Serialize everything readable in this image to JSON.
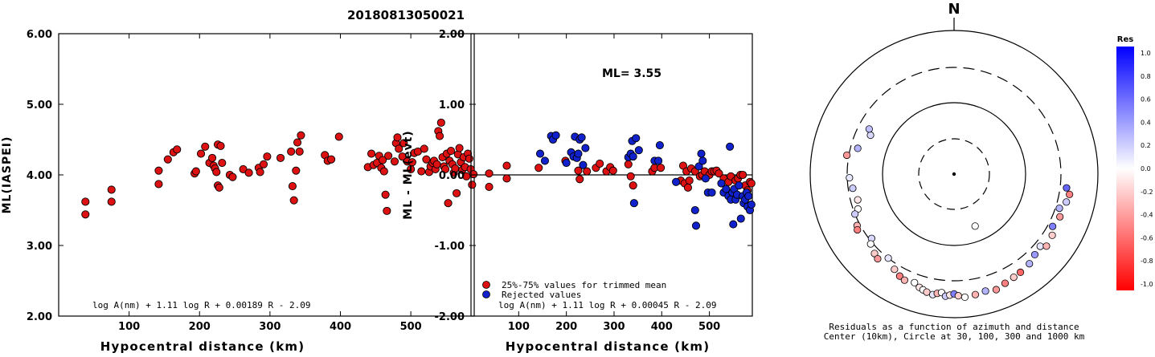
{
  "title": "20180813050021",
  "chart_data": [
    {
      "type": "scatter",
      "xlabel": "Hypocentral distance (km)",
      "ylabel": "ML(IASPEI)",
      "xlim": [
        0,
        590
      ],
      "ylim": [
        2.0,
        6.0
      ],
      "xticks": [
        "100",
        "200",
        "300",
        "400",
        "500"
      ],
      "xtick_values": [
        100,
        200,
        300,
        400,
        500
      ],
      "yticks": [
        "2.00",
        "3.00",
        "4.00",
        "5.00",
        "6.00"
      ],
      "ytick_values": [
        2.0,
        3.0,
        4.0,
        5.0,
        6.0
      ],
      "formula": "log A(nm) + 1.11 log R + 0.00189 R - 2.09",
      "series": [
        {
          "color": "#dd1111",
          "points": [
            [
              38,
              3.62
            ],
            [
              38,
              3.44
            ],
            [
              75,
              3.79
            ],
            [
              75,
              3.62
            ],
            [
              142,
              4.06
            ],
            [
              142,
              3.87
            ],
            [
              155,
              4.22
            ],
            [
              163,
              4.32
            ],
            [
              168,
              4.36
            ],
            [
              193,
              4.02
            ],
            [
              195,
              4.05
            ],
            [
              202,
              4.3
            ],
            [
              208,
              4.4
            ],
            [
              214,
              4.17
            ],
            [
              218,
              4.24
            ],
            [
              220,
              4.13
            ],
            [
              222,
              4.09
            ],
            [
              224,
              4.04
            ],
            [
              226,
              4.43
            ],
            [
              226,
              3.85
            ],
            [
              228,
              3.82
            ],
            [
              230,
              4.41
            ],
            [
              232,
              4.17
            ],
            [
              243,
              4.0
            ],
            [
              247,
              3.97
            ],
            [
              262,
              4.08
            ],
            [
              270,
              4.03
            ],
            [
              284,
              4.1
            ],
            [
              286,
              4.04
            ],
            [
              291,
              4.15
            ],
            [
              296,
              4.26
            ],
            [
              315,
              4.24
            ],
            [
              330,
              4.33
            ],
            [
              332,
              3.84
            ],
            [
              334,
              3.64
            ],
            [
              337,
              4.06
            ],
            [
              339,
              4.46
            ],
            [
              342,
              4.33
            ],
            [
              344,
              4.56
            ],
            [
              378,
              4.28
            ],
            [
              382,
              4.2
            ],
            [
              387,
              4.22
            ],
            [
              398,
              4.54
            ],
            [
              439,
              4.11
            ],
            [
              444,
              4.3
            ],
            [
              447,
              4.14
            ],
            [
              452,
              4.17
            ],
            [
              455,
              4.27
            ],
            [
              458,
              4.1
            ],
            [
              460,
              4.21
            ],
            [
              462,
              4.05
            ],
            [
              464,
              3.72
            ],
            [
              466,
              3.49
            ],
            [
              468,
              4.27
            ],
            [
              477,
              4.19
            ],
            [
              479,
              4.45
            ],
            [
              481,
              4.53
            ],
            [
              483,
              4.37
            ],
            [
              488,
              4.26
            ],
            [
              490,
              4.45
            ],
            [
              495,
              4.19
            ],
            [
              500,
              4.08
            ],
            [
              502,
              4.18
            ],
            [
              505,
              4.31
            ],
            [
              510,
              4.33
            ],
            [
              515,
              4.05
            ],
            [
              519,
              4.37
            ],
            [
              522,
              4.22
            ],
            [
              526,
              4.04
            ],
            [
              528,
              4.12
            ],
            [
              531,
              4.17
            ],
            [
              533,
              4.2
            ],
            [
              535,
              4.08
            ],
            [
              537,
              4.15
            ],
            [
              539,
              4.62
            ],
            [
              541,
              4.55
            ],
            [
              543,
              4.74
            ],
            [
              545,
              4.25
            ],
            [
              547,
              4.12
            ],
            [
              549,
              4.08
            ],
            [
              551,
              4.3
            ],
            [
              553,
              3.6
            ],
            [
              555,
              4.2
            ],
            [
              557,
              4.34
            ],
            [
              559,
              4.15
            ],
            [
              561,
              4.03
            ],
            [
              563,
              4.09
            ],
            [
              565,
              3.74
            ],
            [
              567,
              4.29
            ],
            [
              569,
              4.38
            ],
            [
              571,
              4.18
            ],
            [
              573,
              4.07
            ],
            [
              575,
              4.25
            ],
            [
              577,
              4.11
            ],
            [
              579,
              3.98
            ],
            [
              581,
              4.3
            ],
            [
              583,
              4.23
            ],
            [
              585,
              4.08
            ],
            [
              587,
              3.86
            ],
            [
              589,
              4.01
            ]
          ]
        }
      ]
    },
    {
      "type": "scatter",
      "xlabel": "Hypocentral distance (km)",
      "ylabel": "ML - ML(evt)",
      "xlim": [
        0,
        590
      ],
      "ylim": [
        -2.0,
        2.0
      ],
      "xticks": [
        "100",
        "200",
        "300",
        "400",
        "500"
      ],
      "xtick_values": [
        100,
        200,
        300,
        400,
        500
      ],
      "yticks": [
        "-2.00",
        "-1.00",
        "0.00",
        "1.00",
        "2.00"
      ],
      "ytick_values": [
        -2.0,
        -1.0,
        0.0,
        1.0,
        2.0
      ],
      "annotation": "ML= 3.55",
      "formula": "log A(nm) + 1.11 log R + 0.00045 R - 2.09",
      "legend": [
        {
          "label": "25%-75% values for trimmed mean",
          "color": "#dd1111"
        },
        {
          "label": "Rejected values",
          "color": "#1122cc"
        }
      ],
      "series": [
        {
          "name": "25%-75% values for trimmed mean",
          "color": "#dd1111",
          "points": [
            [
              38,
              0.02
            ],
            [
              38,
              -0.17
            ],
            [
              75,
              0.13
            ],
            [
              75,
              -0.05
            ],
            [
              142,
              0.1
            ],
            [
              198,
              0.2
            ],
            [
              225,
              0.06
            ],
            [
              228,
              -0.06
            ],
            [
              243,
              0.05
            ],
            [
              262,
              0.1
            ],
            [
              270,
              0.16
            ],
            [
              284,
              0.05
            ],
            [
              292,
              0.11
            ],
            [
              298,
              0.06
            ],
            [
              330,
              0.15
            ],
            [
              335,
              -0.02
            ],
            [
              340,
              -0.15
            ],
            [
              380,
              0.05
            ],
            [
              385,
              0.1
            ],
            [
              398,
              0.1
            ],
            [
              440,
              -0.08
            ],
            [
              445,
              0.13
            ],
            [
              448,
              -0.12
            ],
            [
              452,
              0.05
            ],
            [
              455,
              -0.18
            ],
            [
              458,
              -0.08
            ],
            [
              462,
              0.09
            ],
            [
              470,
              0.05
            ],
            [
              480,
              -0.02
            ],
            [
              485,
              0.0
            ],
            [
              490,
              0.05
            ],
            [
              500,
              0.0
            ],
            [
              505,
              0.05
            ],
            [
              510,
              0.05
            ],
            [
              515,
              0.06
            ],
            [
              520,
              0.02
            ],
            [
              530,
              -0.05
            ],
            [
              540,
              -0.1
            ],
            [
              545,
              -0.02
            ],
            [
              555,
              -0.08
            ],
            [
              560,
              -0.05
            ],
            [
              565,
              0.0
            ],
            [
              570,
              0.0
            ],
            [
              575,
              -0.15
            ],
            [
              580,
              -0.22
            ],
            [
              585,
              -0.1
            ],
            [
              588,
              -0.12
            ]
          ]
        },
        {
          "name": "Rejected values",
          "color": "#1122cc",
          "points": [
            [
              145,
              0.3
            ],
            [
              155,
              0.2
            ],
            [
              168,
              0.55
            ],
            [
              172,
              0.5
            ],
            [
              178,
              0.56
            ],
            [
              200,
              0.17
            ],
            [
              210,
              0.32
            ],
            [
              215,
              0.26
            ],
            [
              218,
              0.54
            ],
            [
              222,
              0.24
            ],
            [
              225,
              0.3
            ],
            [
              228,
              0.5
            ],
            [
              232,
              0.53
            ],
            [
              235,
              0.14
            ],
            [
              240,
              0.38
            ],
            [
              330,
              0.25
            ],
            [
              335,
              0.3
            ],
            [
              338,
              0.48
            ],
            [
              340,
              0.26
            ],
            [
              342,
              -0.4
            ],
            [
              346,
              0.52
            ],
            [
              352,
              0.35
            ],
            [
              385,
              0.2
            ],
            [
              393,
              0.2
            ],
            [
              396,
              0.42
            ],
            [
              430,
              -0.1
            ],
            [
              470,
              -0.5
            ],
            [
              472,
              -0.72
            ],
            [
              478,
              0.12
            ],
            [
              483,
              0.3
            ],
            [
              486,
              0.2
            ],
            [
              492,
              -0.05
            ],
            [
              497,
              -0.25
            ],
            [
              505,
              -0.25
            ],
            [
              525,
              -0.12
            ],
            [
              530,
              -0.25
            ],
            [
              535,
              -0.2
            ],
            [
              540,
              -0.3
            ],
            [
              543,
              0.4
            ],
            [
              545,
              -0.35
            ],
            [
              548,
              -0.25
            ],
            [
              550,
              -0.7
            ],
            [
              552,
              -0.2
            ],
            [
              555,
              -0.35
            ],
            [
              558,
              -0.28
            ],
            [
              562,
              -0.15
            ],
            [
              566,
              -0.62
            ],
            [
              570,
              -0.3
            ],
            [
              572,
              -0.4
            ],
            [
              575,
              -0.35
            ],
            [
              578,
              -0.25
            ],
            [
              580,
              -0.45
            ],
            [
              582,
              -0.3
            ],
            [
              585,
              -0.5
            ],
            [
              588,
              -0.42
            ]
          ]
        }
      ]
    }
  ],
  "polar": {
    "north_label": "N",
    "caption_line1": "Residuals as a function of azimuth and distance",
    "caption_line2": "Center (10km), Circle at 30, 100, 300 and 1000 km",
    "colorbar_title": "Res",
    "colorbar_ticks": [
      "1.0",
      "0.8",
      "0.6",
      "0.4",
      "0.2",
      "0.0",
      "-0.2",
      "-0.4",
      "-0.6",
      "-0.8",
      "-1.0"
    ],
    "points": [
      {
        "az": 158,
        "dist": 60,
        "res": 0.0
      },
      {
        "az": 295,
        "dist": 190,
        "res": 0.15
      },
      {
        "az": 298,
        "dist": 215,
        "res": 0.25
      },
      {
        "az": 285,
        "dist": 240,
        "res": 0.3
      },
      {
        "az": 280,
        "dist": 320,
        "res": -0.4
      },
      {
        "az": 268,
        "dist": 280,
        "res": 0.1
      },
      {
        "az": 262,
        "dist": 260,
        "res": 0.2
      },
      {
        "az": 255,
        "dist": 240,
        "res": -0.1
      },
      {
        "az": 250,
        "dist": 260,
        "res": 0.0
      },
      {
        "az": 248,
        "dist": 300,
        "res": 0.2
      },
      {
        "az": 242,
        "dist": 330,
        "res": -0.3
      },
      {
        "az": 240,
        "dist": 350,
        "res": -0.5
      },
      {
        "az": 232,
        "dist": 280,
        "res": 0.15
      },
      {
        "az": 230,
        "dist": 320,
        "res": 0.0
      },
      {
        "az": 225,
        "dist": 360,
        "res": -0.2
      },
      {
        "az": 222,
        "dist": 380,
        "res": -0.4
      },
      {
        "az": 218,
        "dist": 300,
        "res": 0.1
      },
      {
        "az": 212,
        "dist": 360,
        "res": -0.2
      },
      {
        "az": 208,
        "dist": 400,
        "res": -0.5
      },
      {
        "az": 205,
        "dist": 420,
        "res": -0.3
      },
      {
        "az": 200,
        "dist": 400,
        "res": 0.0
      },
      {
        "az": 197,
        "dist": 440,
        "res": -0.1
      },
      {
        "az": 195,
        "dist": 460,
        "res": 0.0
      },
      {
        "az": 193,
        "dist": 480,
        "res": -0.2
      },
      {
        "az": 190,
        "dist": 500,
        "res": 0.1
      },
      {
        "az": 188,
        "dist": 470,
        "res": -0.3
      },
      {
        "az": 186,
        "dist": 450,
        "res": 0.0
      },
      {
        "az": 184,
        "dist": 500,
        "res": 0.2
      },
      {
        "az": 182,
        "dist": 480,
        "res": -0.1
      },
      {
        "az": 180,
        "dist": 460,
        "res": 0.5
      },
      {
        "az": 178,
        "dist": 490,
        "res": -0.2
      },
      {
        "az": 175,
        "dist": 520,
        "res": 0.0
      },
      {
        "az": 170,
        "dist": 500,
        "res": -0.3
      },
      {
        "az": 165,
        "dist": 480,
        "res": 0.3
      },
      {
        "az": 160,
        "dist": 510,
        "res": -0.4
      },
      {
        "az": 155,
        "dist": 470,
        "res": -0.5
      },
      {
        "az": 150,
        "dist": 450,
        "res": -0.2
      },
      {
        "az": 146,
        "dist": 440,
        "res": -0.6
      },
      {
        "az": 140,
        "dist": 420,
        "res": 0.3
      },
      {
        "az": 135,
        "dist": 380,
        "res": 0.4
      },
      {
        "az": 130,
        "dist": 360,
        "res": 0.1
      },
      {
        "az": 128,
        "dist": 420,
        "res": -0.3
      },
      {
        "az": 122,
        "dist": 400,
        "res": -0.2
      },
      {
        "az": 118,
        "dist": 350,
        "res": 0.5
      },
      {
        "az": 112,
        "dist": 380,
        "res": -0.4
      },
      {
        "az": 108,
        "dist": 340,
        "res": 0.3
      },
      {
        "az": 104,
        "dist": 400,
        "res": 0.2
      },
      {
        "az": 100,
        "dist": 420,
        "res": -0.5
      },
      {
        "az": 97,
        "dist": 370,
        "res": 0.6
      }
    ]
  }
}
